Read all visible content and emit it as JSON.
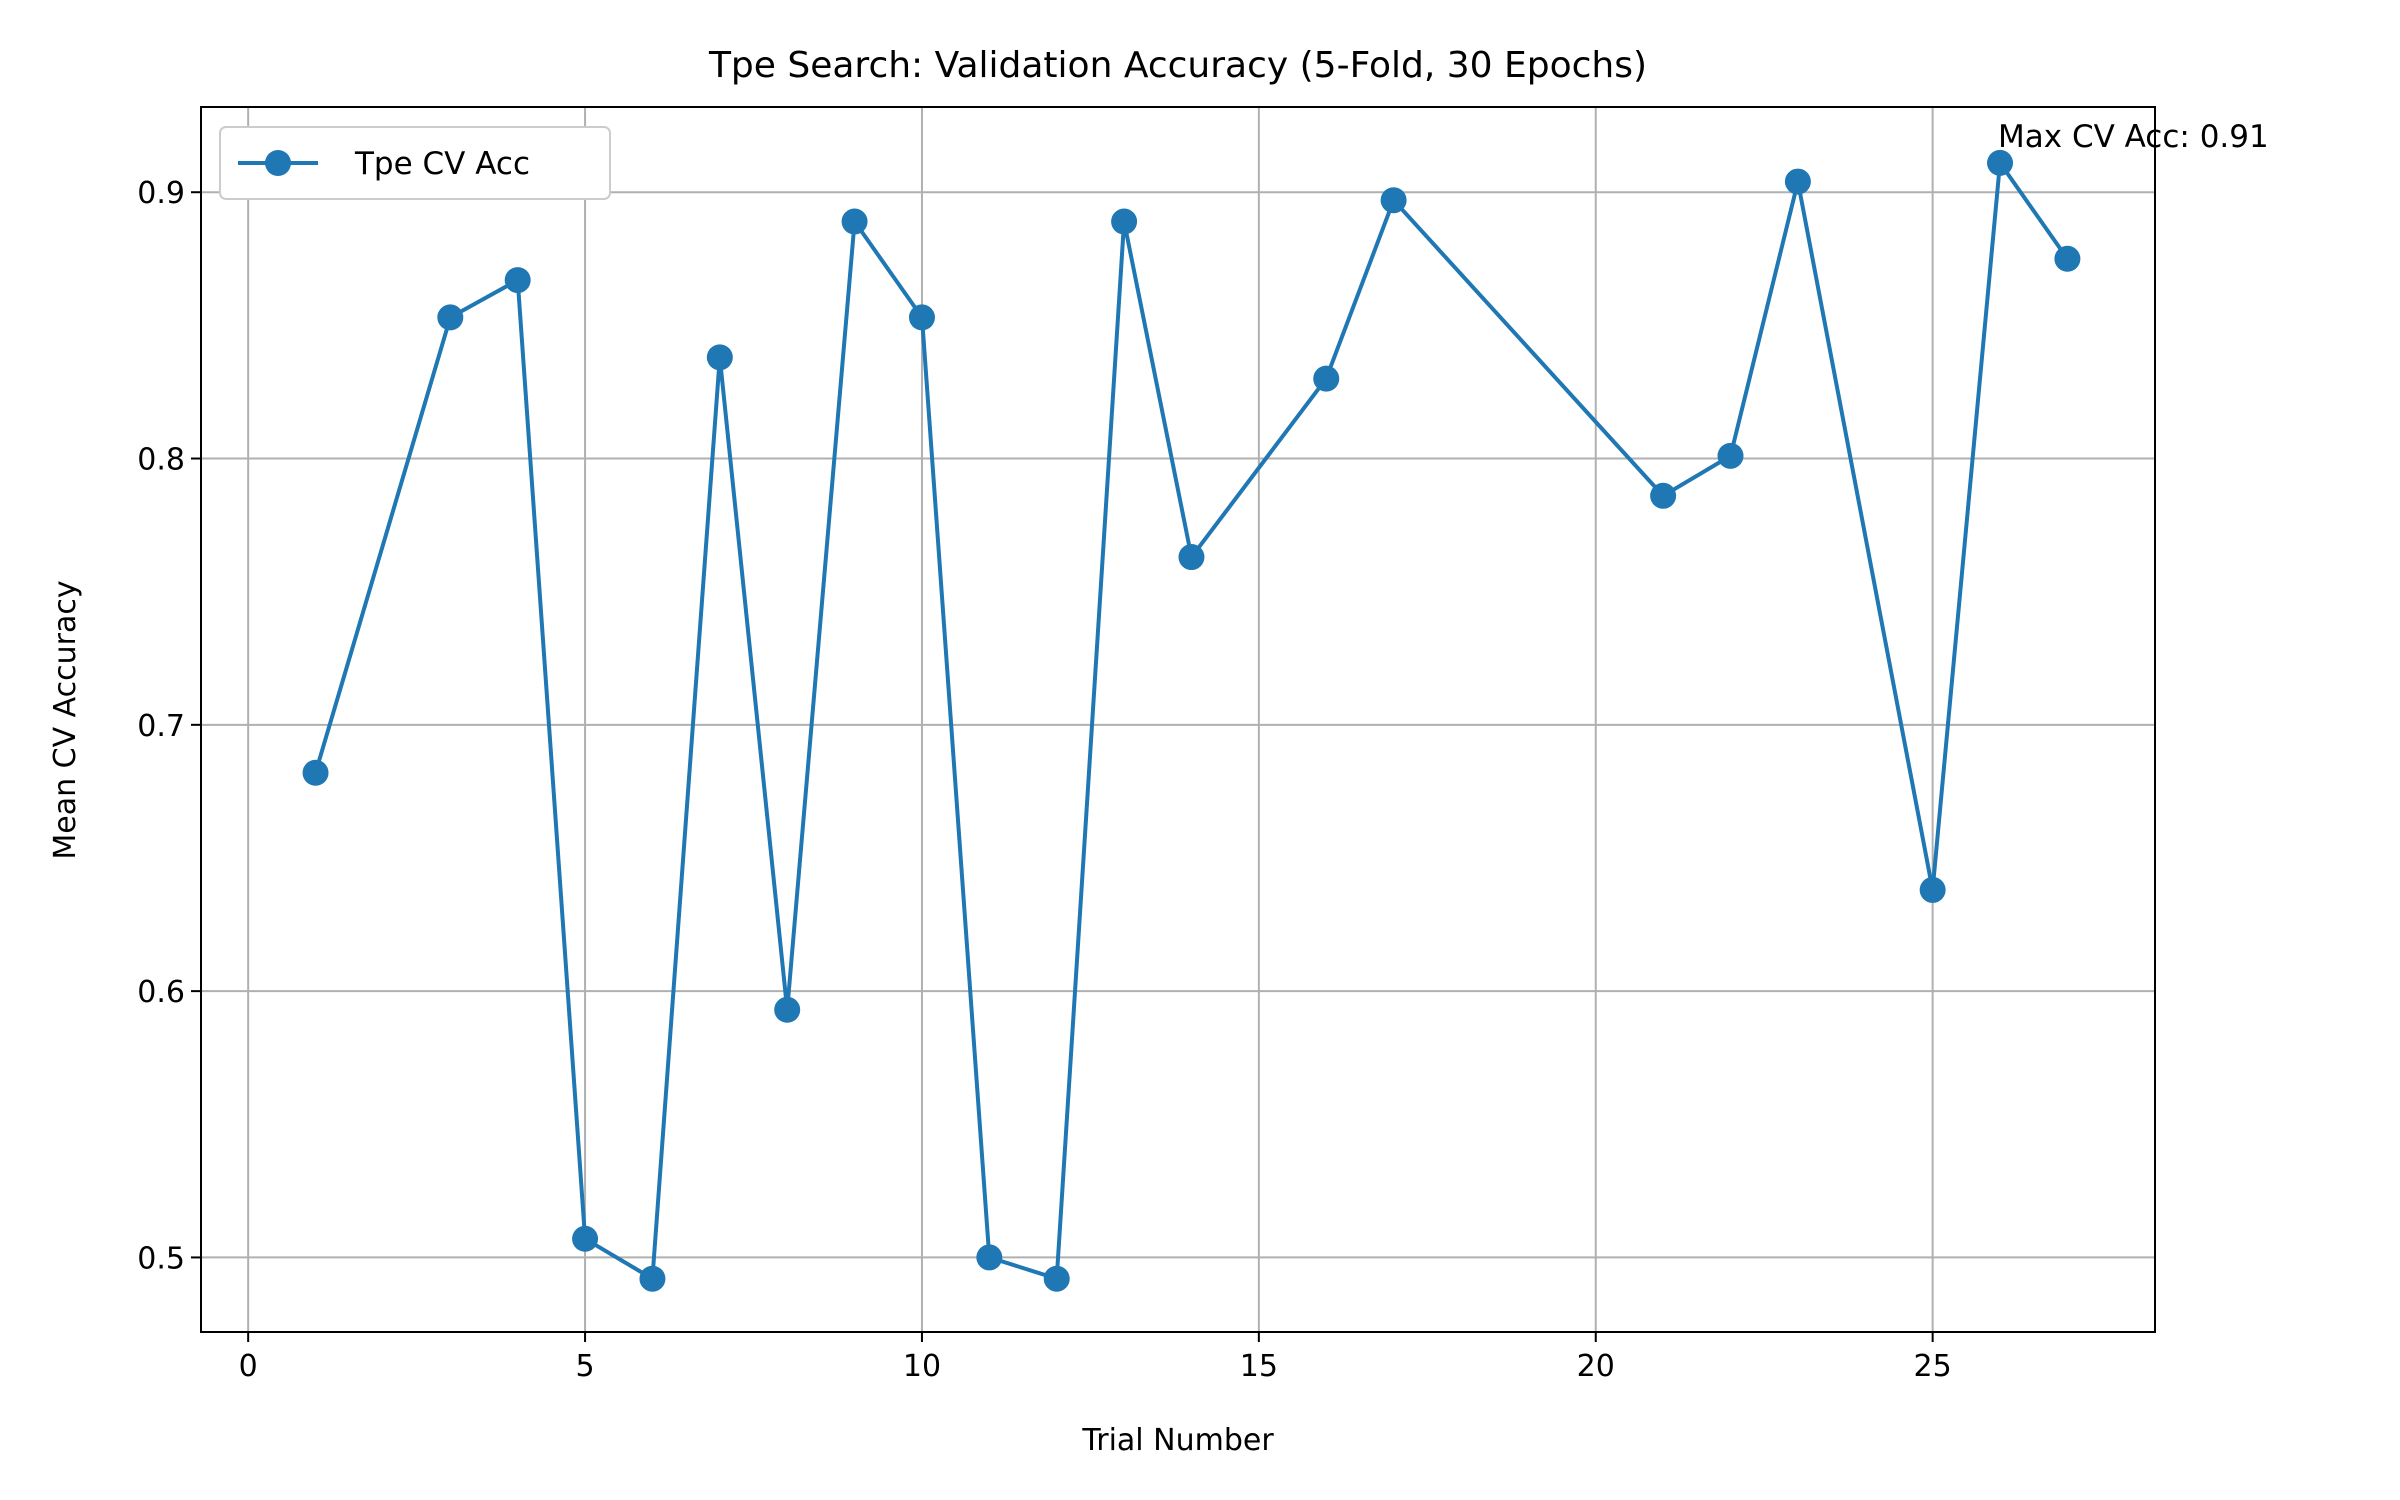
{
  "chart_data": {
    "type": "line",
    "title": "Tpe Search: Validation Accuracy (5-Fold, 30 Epochs)",
    "xlabel": "Trial Number",
    "ylabel": "Mean CV Accuracy",
    "xlim": [
      -0.7,
      28.3
    ],
    "ylim": [
      0.472,
      0.932
    ],
    "xticks": [
      0,
      5,
      10,
      15,
      20,
      25
    ],
    "yticks": [
      0.5,
      0.6,
      0.7,
      0.8,
      0.9
    ],
    "xtick_labels": [
      "0",
      "5",
      "10",
      "15",
      "20",
      "25"
    ],
    "ytick_labels": [
      "0.5",
      "0.6",
      "0.7",
      "0.8",
      "0.9"
    ],
    "grid": true,
    "legend_position": "upper left",
    "series": [
      {
        "name": "Tpe CV Acc",
        "color": "#1f77b4",
        "marker": "circle",
        "x": [
          1,
          3,
          4,
          5,
          6,
          7,
          8,
          9,
          10,
          11,
          12,
          13,
          14,
          16,
          17,
          21,
          22,
          23,
          25,
          26,
          27
        ],
        "y": [
          0.682,
          0.853,
          0.867,
          0.507,
          0.492,
          0.838,
          0.593,
          0.889,
          0.853,
          0.5,
          0.492,
          0.889,
          0.763,
          0.83,
          0.897,
          0.786,
          0.801,
          0.904,
          0.638,
          0.911,
          0.875
        ]
      }
    ],
    "annotations": [
      {
        "text": "Max CV Acc: 0.91",
        "x": 26,
        "y": 0.911,
        "color": "#0000ff"
      }
    ]
  }
}
